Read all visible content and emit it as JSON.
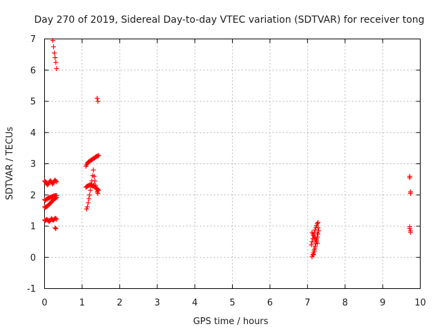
{
  "chart_data": {
    "type": "scatter",
    "title": "Day 270 of 2019, Sidereal Day-to-day VTEC variation (SDTVAR) for receiver tong",
    "xlabel": "GPS time / hours",
    "ylabel": "SDTVAR / TECUs",
    "xlim": [
      0,
      10
    ],
    "ylim": [
      -1,
      7
    ],
    "xticks": [
      "0",
      "1",
      "2",
      "3",
      "4",
      "5",
      "6",
      "7",
      "8",
      "9",
      "10"
    ],
    "yticks": [
      "-1",
      "0",
      "1",
      "2",
      "3",
      "4",
      "5",
      "6",
      "7"
    ],
    "grid": true,
    "marker": "+",
    "color": "#ff0000",
    "series": [
      {
        "name": "SDTVAR",
        "x": [
          0.22,
          0.24,
          0.26,
          0.28,
          0.3,
          0.32,
          0.0,
          0.02,
          0.04,
          0.06,
          0.08,
          0.1,
          0.12,
          0.14,
          0.16,
          0.18,
          0.2,
          0.22,
          0.24,
          0.26,
          0.28,
          0.3,
          0.32,
          0.0,
          0.02,
          0.04,
          0.06,
          0.08,
          0.1,
          0.12,
          0.14,
          0.16,
          0.18,
          0.2,
          0.22,
          0.24,
          0.26,
          0.28,
          0.3,
          0.32,
          0.0,
          0.02,
          0.04,
          0.06,
          0.08,
          0.1,
          0.12,
          0.14,
          0.16,
          0.18,
          0.2,
          0.22,
          0.24,
          0.26,
          0.28,
          0.3,
          0.32,
          0.0,
          0.02,
          0.04,
          0.06,
          0.08,
          0.1,
          0.12,
          0.14,
          0.16,
          0.18,
          0.2,
          0.22,
          0.24,
          0.26,
          0.28,
          0.3,
          0.32,
          0.28,
          0.3,
          1.1,
          1.12,
          1.14,
          1.16,
          1.18,
          1.2,
          1.22,
          1.24,
          1.26,
          1.28,
          1.3,
          1.32,
          1.34,
          1.36,
          1.38,
          1.4,
          1.42,
          1.44,
          1.1,
          1.12,
          1.14,
          1.16,
          1.18,
          1.2,
          1.22,
          1.24,
          1.26,
          1.28,
          1.3,
          1.32,
          1.34,
          1.36,
          1.38,
          1.4,
          1.42,
          1.44,
          1.12,
          1.14,
          1.16,
          1.18,
          1.2,
          1.22,
          1.24,
          1.26,
          1.28,
          1.3,
          1.32,
          1.34,
          1.36,
          1.38,
          1.4,
          1.42,
          1.4,
          1.42,
          7.12,
          7.14,
          7.16,
          7.18,
          7.2,
          7.22,
          7.24,
          7.26,
          7.28,
          7.3,
          7.1,
          7.12,
          7.14,
          7.16,
          7.18,
          7.2,
          7.22,
          7.24,
          7.26,
          7.28,
          7.12,
          7.14,
          7.16,
          7.18,
          7.2,
          7.22,
          7.24,
          7.26,
          7.16,
          7.18,
          7.2,
          7.22,
          7.24,
          7.26,
          7.28,
          9.72,
          9.72,
          9.74,
          9.74,
          9.72,
          9.72,
          9.74,
          9.74
        ],
        "y": [
          6.95,
          6.75,
          6.55,
          6.4,
          6.25,
          6.05,
          2.45,
          2.43,
          2.4,
          2.35,
          2.32,
          2.35,
          2.4,
          2.45,
          2.45,
          2.42,
          2.38,
          2.35,
          2.4,
          2.45,
          2.48,
          2.45,
          2.42,
          1.85,
          1.83,
          1.85,
          1.87,
          1.88,
          1.9,
          1.9,
          1.92,
          1.93,
          1.93,
          1.95,
          1.95,
          1.97,
          1.97,
          1.98,
          1.98,
          1.98,
          1.62,
          1.6,
          1.62,
          1.63,
          1.65,
          1.67,
          1.7,
          1.72,
          1.75,
          1.77,
          1.8,
          1.82,
          1.85,
          1.87,
          1.88,
          1.9,
          1.92,
          1.2,
          1.18,
          1.2,
          1.22,
          1.2,
          1.18,
          1.15,
          1.17,
          1.2,
          1.25,
          1.22,
          1.2,
          1.2,
          1.22,
          1.25,
          1.25,
          1.22,
          0.95,
          0.92,
          2.92,
          2.97,
          3.02,
          3.05,
          3.07,
          3.08,
          3.1,
          3.12,
          3.13,
          3.15,
          3.17,
          3.18,
          3.2,
          3.22,
          3.23,
          3.25,
          3.25,
          3.27,
          2.25,
          2.27,
          2.28,
          2.3,
          2.3,
          2.32,
          2.33,
          2.33,
          2.3,
          2.28,
          2.3,
          2.32,
          2.25,
          2.22,
          2.2,
          2.2,
          2.18,
          2.15,
          1.55,
          1.62,
          1.75,
          1.88,
          2.0,
          2.15,
          2.3,
          2.45,
          2.62,
          2.8,
          2.6,
          2.45,
          2.3,
          2.2,
          2.1,
          2.05,
          5.1,
          5.0,
          0.02,
          0.08,
          0.15,
          0.25,
          0.35,
          0.45,
          0.55,
          0.65,
          0.75,
          0.85,
          0.4,
          0.5,
          0.6,
          0.7,
          0.8,
          0.88,
          0.95,
          1.02,
          1.08,
          1.12,
          0.8,
          0.75,
          0.7,
          0.65,
          0.6,
          0.55,
          0.5,
          0.45,
          0.1,
          0.2,
          0.3,
          0.45,
          0.6,
          0.75,
          0.95,
          2.6,
          2.55,
          2.1,
          2.05,
          0.98,
          0.92,
          0.85,
          0.8
        ]
      }
    ]
  }
}
